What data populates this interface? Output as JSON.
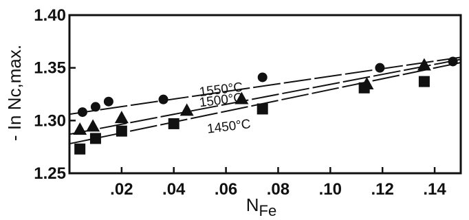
{
  "chart_data": {
    "type": "scatter",
    "title": "",
    "xlabel": "N",
    "xlabel_sub": "Fe",
    "ylabel": "- In Nc,max.",
    "xlim": [
      0,
      0.15
    ],
    "ylim": [
      1.25,
      1.4
    ],
    "x_ticks": [
      {
        "value": 0.02,
        "label": ".02"
      },
      {
        "value": 0.04,
        "label": ".04"
      },
      {
        "value": 0.06,
        "label": ".06"
      },
      {
        "value": 0.08,
        "label": ".08"
      },
      {
        "value": 0.1,
        "label": ".10"
      },
      {
        "value": 0.12,
        "label": ".12"
      },
      {
        "value": 0.14,
        "label": ".14"
      }
    ],
    "y_ticks": [
      {
        "value": 1.25,
        "label": "1.25"
      },
      {
        "value": 1.3,
        "label": "1.30"
      },
      {
        "value": 1.35,
        "label": "1.35"
      },
      {
        "value": 1.4,
        "label": "1.40"
      }
    ],
    "grid": false,
    "series": [
      {
        "name": "1550°C",
        "marker": "circle",
        "points": [
          {
            "x": 0.005,
            "y": 1.308
          },
          {
            "x": 0.01,
            "y": 1.313
          },
          {
            "x": 0.015,
            "y": 1.318
          },
          {
            "x": 0.036,
            "y": 1.32
          },
          {
            "x": 0.074,
            "y": 1.341
          },
          {
            "x": 0.119,
            "y": 1.35
          },
          {
            "x": 0.147,
            "y": 1.356
          }
        ],
        "fit": {
          "x0": 0.0,
          "y0": 1.306,
          "x1": 0.15,
          "y1": 1.36
        },
        "label_at": {
          "x": 0.05,
          "y": 1.323
        }
      },
      {
        "name": "1500°C",
        "marker": "triangle",
        "points": [
          {
            "x": 0.004,
            "y": 1.291
          },
          {
            "x": 0.009,
            "y": 1.294
          },
          {
            "x": 0.02,
            "y": 1.302
          },
          {
            "x": 0.045,
            "y": 1.309
          },
          {
            "x": 0.066,
            "y": 1.32
          },
          {
            "x": 0.114,
            "y": 1.334
          },
          {
            "x": 0.136,
            "y": 1.352
          }
        ],
        "fit": {
          "x0": 0.0,
          "y0": 1.287,
          "x1": 0.15,
          "y1": 1.358
        },
        "label_at": {
          "x": 0.05,
          "y": 1.313
        }
      },
      {
        "name": "1450°C",
        "marker": "square",
        "points": [
          {
            "x": 0.004,
            "y": 1.273
          },
          {
            "x": 0.01,
            "y": 1.283
          },
          {
            "x": 0.02,
            "y": 1.29
          },
          {
            "x": 0.04,
            "y": 1.297
          },
          {
            "x": 0.074,
            "y": 1.311
          },
          {
            "x": 0.113,
            "y": 1.331
          },
          {
            "x": 0.136,
            "y": 1.337
          }
        ],
        "fit": {
          "x0": 0.0,
          "y0": 1.278,
          "x1": 0.15,
          "y1": 1.355
        },
        "label_at": {
          "x": 0.053,
          "y": 1.288
        }
      }
    ]
  }
}
